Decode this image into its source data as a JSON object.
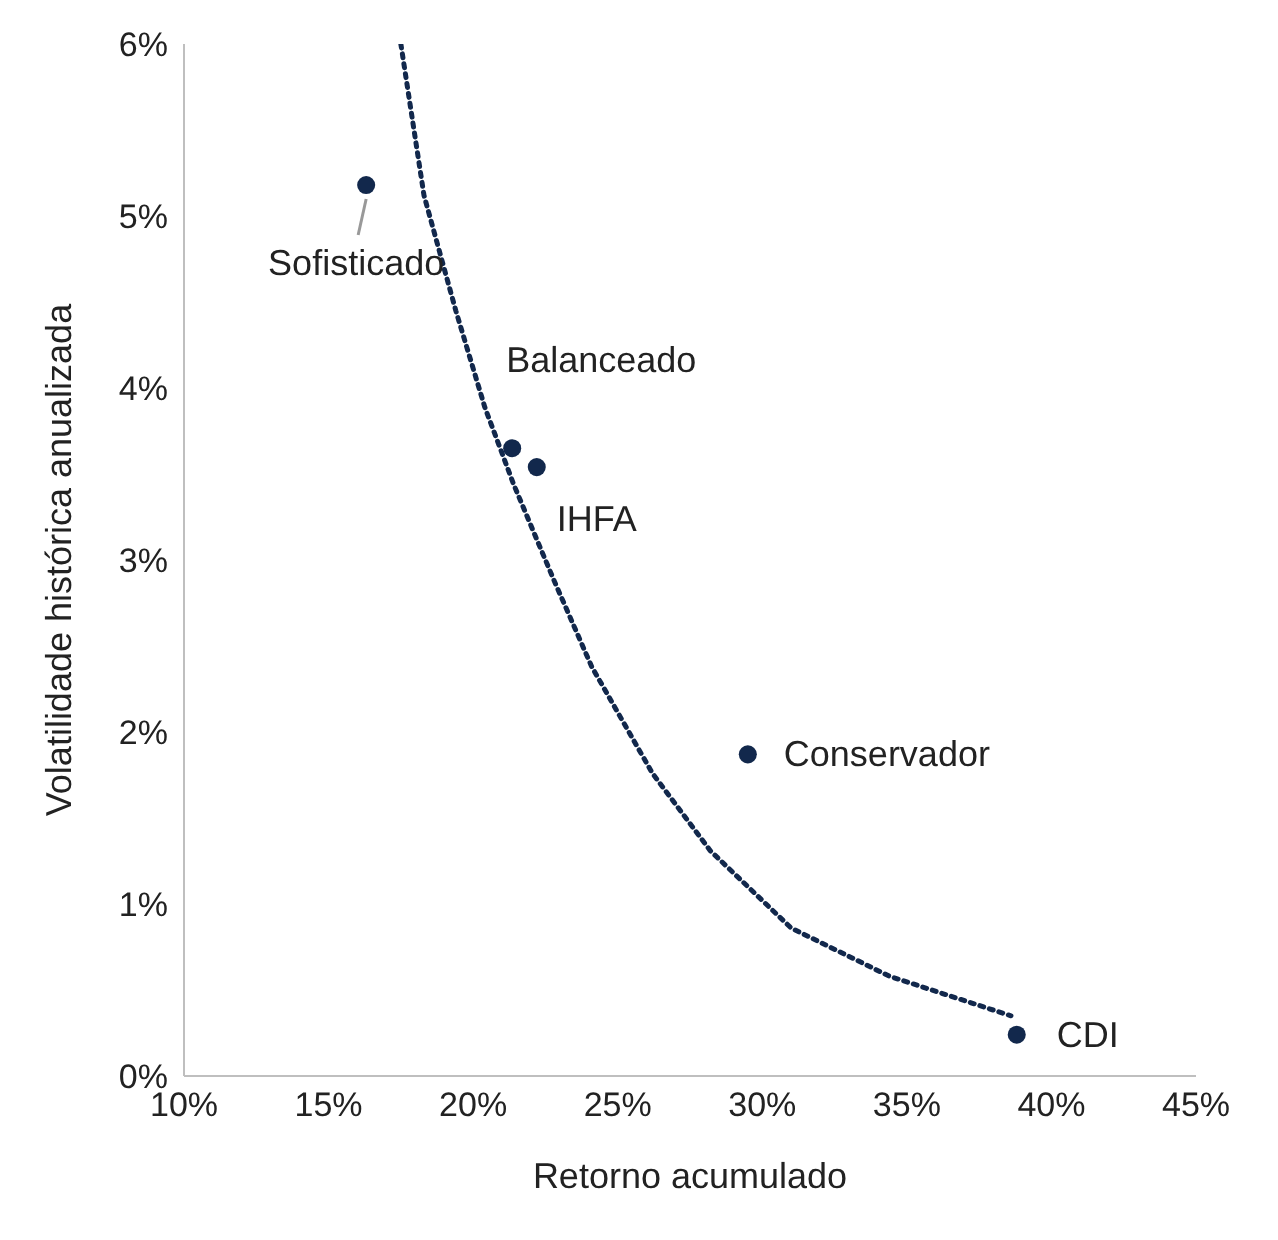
{
  "chart_data": {
    "type": "scatter",
    "xlabel": "Retorno acumulado",
    "ylabel": "Volatilidade histórica anualizada",
    "xlim": [
      10,
      45
    ],
    "xticks": [
      {
        "value": 10,
        "label": "10%"
      },
      {
        "value": 15,
        "label": "15%"
      },
      {
        "value": 20,
        "label": "20%"
      },
      {
        "value": 25,
        "label": "25%"
      },
      {
        "value": 30,
        "label": "30%"
      },
      {
        "value": 35,
        "label": "35%"
      },
      {
        "value": 40,
        "label": "40%"
      },
      {
        "value": 45,
        "label": "45%"
      }
    ],
    "ylim": [
      0,
      6
    ],
    "yticks": [
      {
        "value": 0,
        "label": "0%"
      },
      {
        "value": 1,
        "label": "1%"
      },
      {
        "value": 2,
        "label": "2%"
      },
      {
        "value": 3,
        "label": "3%"
      },
      {
        "value": 4,
        "label": "4%"
      },
      {
        "value": 5,
        "label": "5%"
      },
      {
        "value": 6,
        "label": "6%"
      }
    ],
    "grid": false,
    "marker": "circle",
    "series": [
      {
        "color": "#12284c",
        "x": [
          16.3,
          21.35,
          22.2,
          29.5,
          38.8
        ],
        "values": [
          5.18,
          3.65,
          3.54,
          1.87,
          0.24
        ]
      },
      {
        "type": "line",
        "color": "#12284c",
        "line_style": "dotted",
        "marker": "none",
        "x": [
          17.5,
          18.3,
          19.4,
          20.4,
          21.4,
          22.8,
          24.1,
          26.2,
          28.2,
          31.0,
          34.4,
          38.6
        ],
        "values": [
          6.0,
          5.12,
          4.45,
          3.89,
          3.44,
          2.88,
          2.38,
          1.76,
          1.31,
          0.86,
          0.58,
          0.35
        ]
      }
    ],
    "annotations": [
      {
        "text": "Sofisticado",
        "x": 16.3,
        "y": 5.18
      },
      {
        "text": "Balanceado",
        "x": 21.35,
        "y": 3.65
      },
      {
        "text": "IHFA",
        "x": 22.2,
        "y": 3.54
      },
      {
        "text": "Conservador",
        "x": 29.5,
        "y": 1.87
      },
      {
        "text": "CDI",
        "x": 38.8,
        "y": 0.24
      }
    ]
  }
}
